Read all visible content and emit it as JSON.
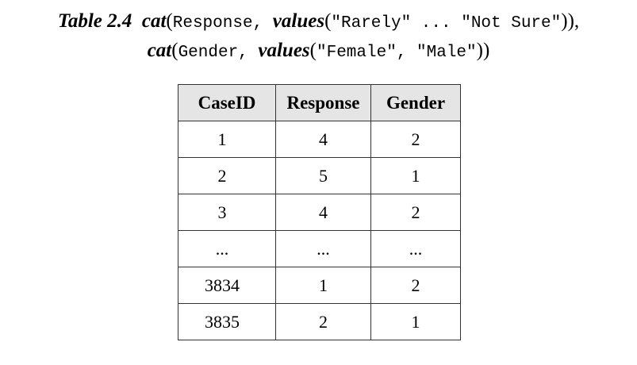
{
  "caption": {
    "line1": [
      {
        "text": "Table 2.4",
        "style": "bi"
      },
      {
        "text": "  ",
        "style": "plain"
      },
      {
        "text": "cat",
        "style": "bi"
      },
      {
        "text": "(",
        "style": "plain"
      },
      {
        "text": "Response, ",
        "style": "mono"
      },
      {
        "text": "values",
        "style": "bi"
      },
      {
        "text": "(",
        "style": "plain"
      },
      {
        "text": "\"Rarely\" ... \"Not Sure\"",
        "style": "mono"
      },
      {
        "text": ")),",
        "style": "plain"
      }
    ],
    "line2": [
      {
        "text": "cat",
        "style": "bi"
      },
      {
        "text": "(",
        "style": "plain"
      },
      {
        "text": "Gender, ",
        "style": "mono"
      },
      {
        "text": "values",
        "style": "bi"
      },
      {
        "text": "(",
        "style": "plain"
      },
      {
        "text": "\"Female\", \"Male\"",
        "style": "mono"
      },
      {
        "text": "))",
        "style": "plain"
      }
    ]
  },
  "table": {
    "headers": [
      "CaseID",
      "Response",
      "Gender"
    ],
    "rows": [
      [
        "1",
        "4",
        "2"
      ],
      [
        "2",
        "5",
        "1"
      ],
      [
        "3",
        "4",
        "2"
      ],
      [
        "...",
        "...",
        "..."
      ],
      [
        "3834",
        "1",
        "2"
      ],
      [
        "3835",
        "2",
        "1"
      ]
    ]
  }
}
